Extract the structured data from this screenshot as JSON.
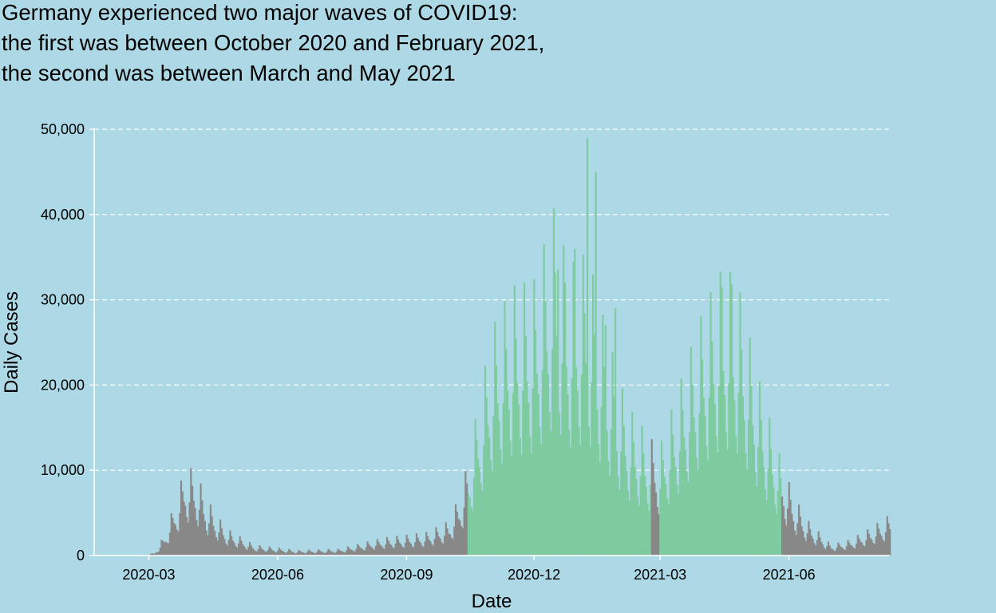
{
  "chart_data": {
    "type": "bar",
    "title_lines": [
      "Germany experienced two major waves of COVID19:",
      "the first was between October 2020 and February 2021,",
      "the second was between March and May 2021"
    ],
    "xlabel": "Date",
    "ylabel": "Daily Cases",
    "ylim": [
      0,
      50000
    ],
    "yticks": [
      0,
      10000,
      20000,
      30000,
      40000,
      50000
    ],
    "ytick_labels": [
      "0",
      "10,000",
      "20,000",
      "30,000",
      "40,000",
      "50,000"
    ],
    "xticks": [
      "2020-03-01",
      "2020-06-01",
      "2020-09-01",
      "2020-12-01",
      "2021-03-01",
      "2021-06-01"
    ],
    "xtick_labels": [
      "2020-03",
      "2020-06",
      "2020-09",
      "2020-12",
      "2021-03",
      "2021-06"
    ],
    "xlim": [
      "2020-01-22",
      "2021-08-12"
    ],
    "grid": "horizontal dashed",
    "colors": {
      "background": "#add8e6",
      "wave": "#7fcba0",
      "other": "#888888",
      "grid": "#ffffff",
      "text": "#000000"
    },
    "waves": [
      {
        "start": "2020-10-15",
        "end": "2021-02-22"
      },
      {
        "start": "2021-03-01",
        "end": "2021-05-26"
      }
    ],
    "series_anchors": [
      [
        "2020-01-22",
        0
      ],
      [
        "2020-02-24",
        0
      ],
      [
        "2020-03-05",
        200
      ],
      [
        "2020-03-12",
        1500
      ],
      [
        "2020-03-20",
        4000
      ],
      [
        "2020-03-27",
        6500
      ],
      [
        "2020-04-03",
        6200
      ],
      [
        "2020-04-12",
        4000
      ],
      [
        "2020-04-25",
        2000
      ],
      [
        "2020-05-15",
        800
      ],
      [
        "2020-06-15",
        400
      ],
      [
        "2020-07-15",
        500
      ],
      [
        "2020-08-15",
        1300
      ],
      [
        "2020-09-15",
        1700
      ],
      [
        "2020-10-01",
        2500
      ],
      [
        "2020-10-08",
        4200
      ],
      [
        "2020-10-14",
        6500
      ],
      [
        "2020-10-22",
        11000
      ],
      [
        "2020-11-01",
        16500
      ],
      [
        "2020-11-15",
        19500
      ],
      [
        "2020-12-01",
        20000
      ],
      [
        "2020-12-16",
        25500
      ],
      [
        "2020-12-25",
        21000
      ],
      [
        "2021-01-08",
        22000
      ],
      [
        "2021-01-20",
        17000
      ],
      [
        "2021-02-05",
        11000
      ],
      [
        "2021-02-22",
        8500
      ],
      [
        "2021-03-01",
        8000
      ],
      [
        "2021-03-15",
        12500
      ],
      [
        "2021-04-01",
        18000
      ],
      [
        "2021-04-15",
        21000
      ],
      [
        "2021-04-25",
        20000
      ],
      [
        "2021-05-10",
        13000
      ],
      [
        "2021-05-26",
        7000
      ],
      [
        "2021-06-05",
        4200
      ],
      [
        "2021-06-15",
        2500
      ],
      [
        "2021-07-01",
        800
      ],
      [
        "2021-07-15",
        1200
      ],
      [
        "2021-08-01",
        2200
      ],
      [
        "2021-08-12",
        3000
      ]
    ],
    "weekly_pattern": [
      0.98,
      1.62,
      1.3,
      1.03,
      0.9,
      0.7,
      0.6
    ],
    "spikes": [
      [
        "2020-12-18",
        33500
      ],
      [
        "2020-12-23",
        32000
      ],
      [
        "2020-12-30",
        36000
      ],
      [
        "2021-01-08",
        49000
      ],
      [
        "2021-01-14",
        45000
      ],
      [
        "2021-01-21",
        27000
      ],
      [
        "2021-01-28",
        29000
      ],
      [
        "2021-04-14",
        31500
      ],
      [
        "2021-04-21",
        31800
      ]
    ]
  }
}
